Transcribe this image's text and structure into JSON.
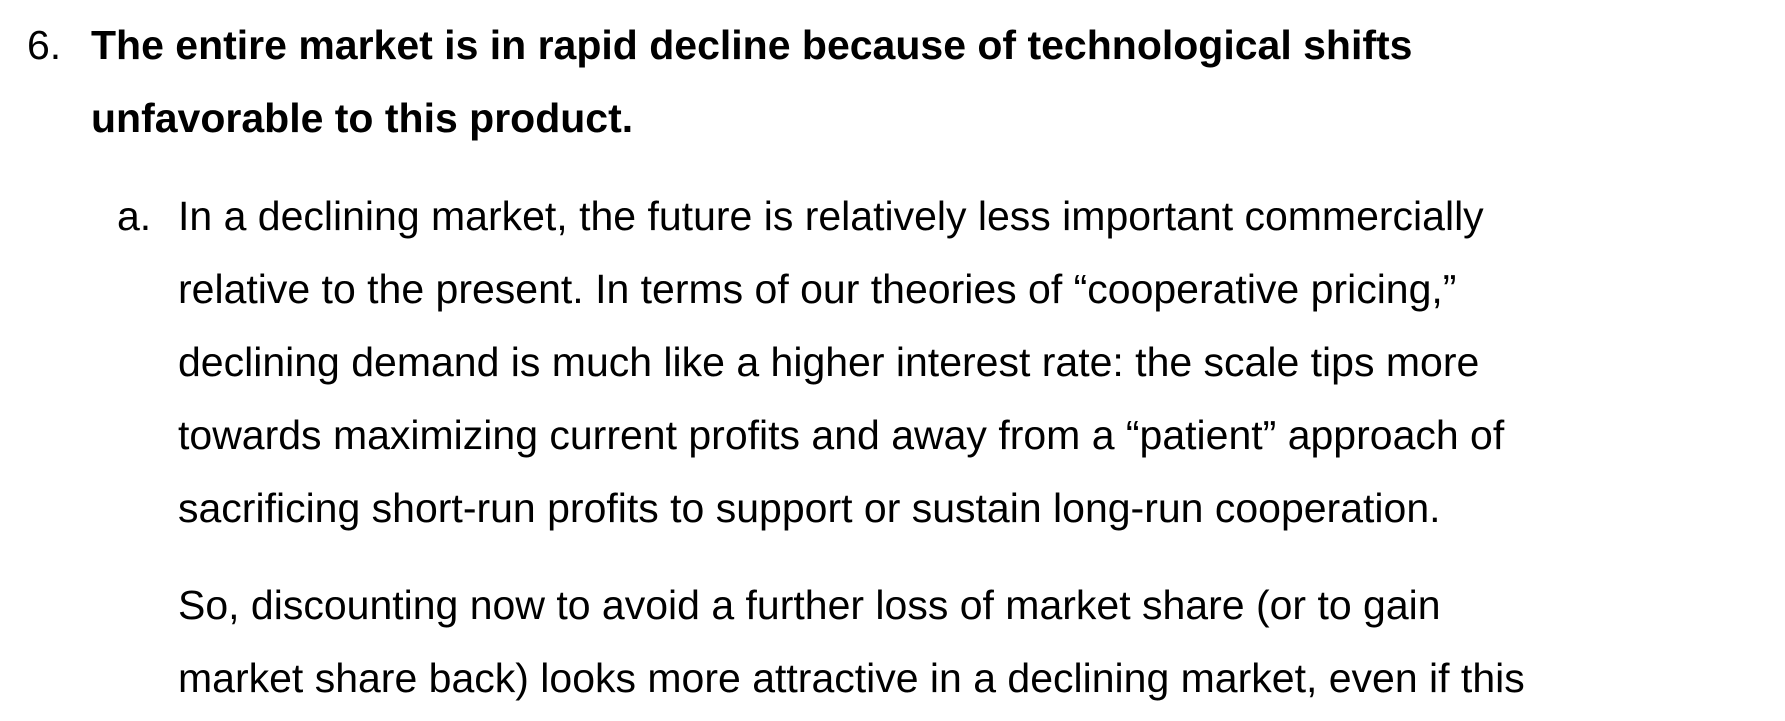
{
  "item6": {
    "marker": "6.",
    "lines": [
      "The entire market is in rapid decline because of technological shifts",
      "unfavorable to this product."
    ]
  },
  "item_a": {
    "marker": "a.",
    "lines": [
      "In a declining market, the future is relatively less important commercially",
      "relative to the present. In terms of our theories of “cooperative pricing,”",
      "declining demand is much like a higher interest rate: the scale tips more",
      "towards maximizing current profits and away from a “patient” approach of",
      "sacrificing short-run profits to support or sustain long-run cooperation."
    ]
  },
  "para2": {
    "lines": [
      "So, discounting now to avoid a further loss of market share (or to gain",
      "market share back) looks more attractive in a declining market, even if this"
    ]
  }
}
